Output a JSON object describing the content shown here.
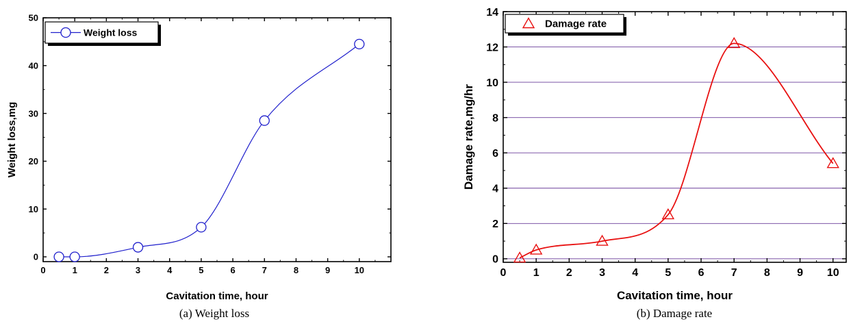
{
  "chart_data": [
    {
      "type": "line",
      "caption": "(a)  Weight  loss",
      "xlabel": "Cavitation time, hour",
      "ylabel": "Weight loss,mg",
      "xlim": [
        0,
        11
      ],
      "ylim": [
        -1,
        50
      ],
      "xticks": [
        0,
        1,
        2,
        3,
        4,
        5,
        6,
        7,
        8,
        9,
        10
      ],
      "yticks": [
        0,
        10,
        20,
        30,
        40,
        50
      ],
      "grid": false,
      "legend_position": "top-left",
      "series": [
        {
          "name": "Weight loss",
          "marker": "circle",
          "color": "#1f1fcc",
          "x": [
            0.5,
            1,
            3,
            5,
            7,
            10
          ],
          "y": [
            0,
            0,
            2,
            6.2,
            28.5,
            44.5
          ]
        }
      ]
    },
    {
      "type": "line",
      "caption": "(b)  Damage  rate",
      "xlabel": "Cavitation time, hour",
      "ylabel": "Damage rate,mg/hr",
      "xlim": [
        0,
        10.4
      ],
      "ylim": [
        -0.2,
        14
      ],
      "xticks": [
        0,
        1,
        2,
        3,
        4,
        5,
        6,
        7,
        8,
        9,
        10
      ],
      "yticks": [
        0,
        2,
        4,
        6,
        8,
        10,
        12,
        14
      ],
      "grid": true,
      "grid_color": "#6a3d9a",
      "legend_position": "top-left",
      "series": [
        {
          "name": "Damage rate",
          "marker": "triangle",
          "color": "#e81010",
          "x": [
            0.5,
            1,
            3,
            5,
            7,
            10
          ],
          "y": [
            0.05,
            0.5,
            1,
            2.5,
            12.2,
            5.4
          ]
        }
      ]
    }
  ]
}
